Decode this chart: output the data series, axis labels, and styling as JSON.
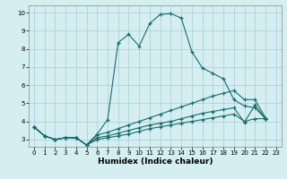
{
  "xlabel": "Humidex (Indice chaleur)",
  "bg_color": "#d4eef2",
  "line_color": "#1a6b6b",
  "grid_color": "#a8cdd4",
  "xlim": [
    -0.5,
    23.5
  ],
  "ylim": [
    2.6,
    10.4
  ],
  "xticks": [
    0,
    1,
    2,
    3,
    4,
    5,
    6,
    7,
    8,
    9,
    10,
    11,
    12,
    13,
    14,
    15,
    16,
    17,
    18,
    19,
    20,
    21,
    22,
    23
  ],
  "yticks": [
    3,
    4,
    5,
    6,
    7,
    8,
    9,
    10
  ],
  "curve_main": {
    "x": [
      0,
      1,
      2,
      3,
      4,
      5,
      6,
      7,
      8,
      9,
      10,
      11,
      12,
      13,
      14,
      15,
      16,
      17,
      18,
      19,
      20,
      21,
      22
    ],
    "y": [
      3.7,
      3.2,
      3.0,
      3.1,
      3.1,
      2.7,
      3.3,
      4.1,
      8.35,
      8.8,
      8.15,
      9.4,
      9.9,
      9.95,
      9.7,
      7.85,
      6.95,
      6.65,
      6.35,
      5.2,
      4.85,
      4.75,
      4.15
    ]
  },
  "curve_upper": {
    "x": [
      0,
      1,
      2,
      3,
      4,
      5,
      6,
      7,
      8,
      9,
      10,
      11,
      12,
      13,
      14,
      15,
      16,
      17,
      18,
      19,
      20,
      21,
      22
    ],
    "y": [
      3.7,
      3.2,
      3.0,
      3.1,
      3.1,
      2.7,
      3.25,
      3.4,
      3.6,
      3.8,
      4.0,
      4.2,
      4.4,
      4.6,
      4.8,
      5.0,
      5.2,
      5.4,
      5.55,
      5.7,
      5.2,
      5.2,
      4.2
    ]
  },
  "curve_mid": {
    "x": [
      0,
      1,
      2,
      3,
      4,
      5,
      6,
      7,
      8,
      9,
      10,
      11,
      12,
      13,
      14,
      15,
      16,
      17,
      18,
      19,
      20,
      21,
      22
    ],
    "y": [
      3.7,
      3.2,
      3.0,
      3.1,
      3.1,
      2.7,
      3.1,
      3.2,
      3.35,
      3.5,
      3.65,
      3.8,
      3.9,
      4.0,
      4.15,
      4.3,
      4.45,
      4.55,
      4.65,
      4.75,
      3.95,
      4.9,
      4.15
    ]
  },
  "curve_lower": {
    "x": [
      0,
      1,
      2,
      3,
      4,
      5,
      6,
      7,
      8,
      9,
      10,
      11,
      12,
      13,
      14,
      15,
      16,
      17,
      18,
      19,
      20,
      21,
      22
    ],
    "y": [
      3.7,
      3.2,
      3.0,
      3.1,
      3.1,
      2.7,
      3.0,
      3.1,
      3.2,
      3.3,
      3.45,
      3.6,
      3.7,
      3.8,
      3.9,
      4.0,
      4.1,
      4.2,
      4.3,
      4.4,
      4.0,
      4.15,
      4.15
    ]
  }
}
